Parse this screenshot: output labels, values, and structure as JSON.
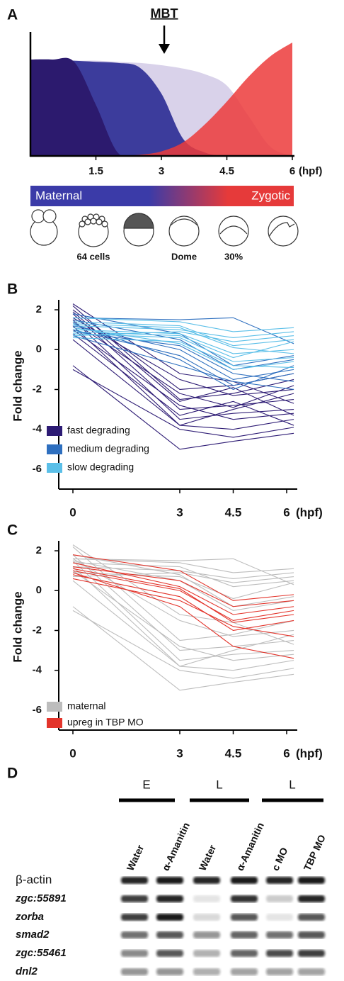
{
  "chart_data": [
    {
      "type": "area",
      "panel": "A",
      "title": "MBT",
      "x": [
        0,
        0.5,
        1,
        1.5,
        2,
        2.5,
        3,
        3.5,
        4,
        4.5,
        5,
        5.5,
        6
      ],
      "series": [
        {
          "color": "#d9d2ea",
          "values": [
            85,
            85,
            84,
            84,
            83,
            82,
            80,
            77,
            72,
            62,
            35,
            8,
            0
          ]
        },
        {
          "color": "#3c3c9c",
          "values": [
            85,
            85,
            84,
            83,
            82,
            78,
            55,
            15,
            3,
            0,
            0,
            0,
            0
          ]
        },
        {
          "color": "#2c1a6e",
          "values": [
            85,
            85,
            83,
            45,
            3,
            0,
            0,
            0,
            0,
            0,
            0,
            0,
            0
          ]
        },
        {
          "color": "#ec3b3b",
          "values": [
            0,
            0,
            0,
            0,
            0,
            1,
            4,
            12,
            28,
            48,
            70,
            88,
            100
          ]
        }
      ],
      "xlim": [
        0,
        6
      ],
      "ylim": [
        0,
        100
      ],
      "xticks": [
        1.5,
        3,
        4.5,
        6
      ],
      "xlabel": "(hpf)",
      "bar_labels": [
        "Maternal",
        "Zygotic"
      ],
      "stage_labels": [
        "64 cells",
        "Dome",
        "30%"
      ]
    },
    {
      "type": "line",
      "panel": "B",
      "xlabel": "(hpf)",
      "ylabel": "Fold change",
      "x": [
        0,
        3,
        4.5,
        6.2
      ],
      "xlim": [
        0,
        6
      ],
      "ylim": [
        -7,
        2.5
      ],
      "xticks": [
        0,
        3,
        4.5,
        6
      ],
      "yticks": [
        2,
        0,
        -2,
        -4,
        -6
      ],
      "groups": [
        {
          "name": "fast degrading",
          "color": "#2d1b74",
          "lines": [
            [
              2.2,
              -2.5,
              -2.2,
              -1.5
            ],
            [
              1.8,
              -3.0,
              -2.8,
              -2.5
            ],
            [
              1.5,
              -3.5,
              -3.2,
              -3.0
            ],
            [
              2.0,
              -2.0,
              -1.8,
              -1.2
            ],
            [
              1.2,
              -3.8,
              -4.0,
              -3.5
            ],
            [
              0.8,
              -3.3,
              -2.6,
              -3.8
            ],
            [
              -0.8,
              -5.0,
              -4.6,
              -4.2
            ],
            [
              -1.0,
              -4.0,
              -4.4,
              -3.9
            ],
            [
              1.6,
              -1.5,
              -2.3,
              -2.0
            ],
            [
              1.0,
              -2.8,
              -3.5,
              -3.2
            ],
            [
              2.3,
              -1.2,
              -1.6,
              -2.7
            ],
            [
              0.5,
              -3.8,
              -3.0,
              -2.2
            ],
            [
              1.4,
              -2.2,
              -2.9,
              -1.8
            ],
            [
              1.9,
              -2.6,
              -1.9,
              -3.3
            ]
          ]
        },
        {
          "name": "medium degrading",
          "color": "#2e6fbf",
          "lines": [
            [
              1.5,
              0.5,
              -1.0,
              -0.5
            ],
            [
              1.2,
              0.0,
              -1.5,
              -1.0
            ],
            [
              1.0,
              -0.3,
              -1.8,
              -1.2
            ],
            [
              1.8,
              0.8,
              -0.8,
              -0.3
            ],
            [
              0.9,
              0.2,
              -1.2,
              -1.6
            ],
            [
              1.3,
              -0.5,
              -2.0,
              -0.8
            ],
            [
              1.6,
              1.5,
              1.6,
              0.3
            ],
            [
              0.7,
              -0.8,
              -1.6,
              -2.0
            ]
          ]
        },
        {
          "name": "slow degrading",
          "color": "#5bbfe8",
          "lines": [
            [
              1.4,
              1.2,
              0.2,
              0.5
            ],
            [
              1.0,
              0.8,
              -0.2,
              0.0
            ],
            [
              0.8,
              0.6,
              -0.6,
              -0.4
            ],
            [
              1.2,
              1.0,
              0.6,
              0.9
            ],
            [
              0.6,
              0.4,
              -0.8,
              -0.9
            ],
            [
              1.6,
              1.4,
              0.9,
              1.1
            ],
            [
              0.9,
              0.7,
              -0.4,
              0.4
            ],
            [
              1.1,
              0.3,
              -1.0,
              -0.6
            ],
            [
              1.3,
              1.1,
              0.1,
              -0.2
            ],
            [
              0.7,
              0.9,
              0.4,
              0.7
            ]
          ]
        }
      ]
    },
    {
      "type": "line",
      "panel": "C",
      "xlabel": "(hpf)",
      "ylabel": "Fold change",
      "x": [
        0,
        3,
        4.5,
        6.2
      ],
      "xlim": [
        0,
        6
      ],
      "ylim": [
        -7,
        2.5
      ],
      "xticks": [
        0,
        3,
        4.5,
        6
      ],
      "yticks": [
        2,
        0,
        -2,
        -4,
        -6
      ],
      "groups": [
        {
          "name": "maternal",
          "color": "#bdbdbd",
          "lines": [
            [
              2.2,
              -2.5,
              -2.2,
              -1.5
            ],
            [
              1.8,
              -3.0,
              -2.8,
              -2.5
            ],
            [
              1.5,
              -3.5,
              -3.2,
              -3.0
            ],
            [
              1.2,
              -3.8,
              -4.0,
              -3.5
            ],
            [
              -0.8,
              -5.0,
              -4.6,
              -4.2
            ],
            [
              -1.0,
              -4.0,
              -4.4,
              -3.9
            ],
            [
              1.6,
              -1.5,
              -2.3,
              -2.0
            ],
            [
              1.0,
              -2.8,
              -3.5,
              -3.2
            ],
            [
              2.3,
              -1.2,
              -1.6,
              -2.7
            ],
            [
              0.5,
              -3.8,
              -3.0,
              -2.2
            ],
            [
              1.5,
              0.5,
              -1.0,
              -0.5
            ],
            [
              1.8,
              0.8,
              -0.8,
              -0.3
            ],
            [
              1.6,
              1.5,
              1.6,
              0.3
            ],
            [
              1.4,
              1.2,
              0.2,
              0.5
            ],
            [
              1.2,
              1.0,
              0.6,
              0.9
            ],
            [
              1.6,
              1.4,
              0.9,
              1.1
            ],
            [
              0.9,
              0.7,
              -0.4,
              0.4
            ],
            [
              0.7,
              0.9,
              0.4,
              0.7
            ]
          ]
        },
        {
          "name": "upreg in TBP MO",
          "color": "#e3342b",
          "lines": [
            [
              1.0,
              0.0,
              -1.5,
              -1.0
            ],
            [
              0.8,
              -0.3,
              -2.0,
              -1.5
            ],
            [
              1.2,
              0.5,
              -0.8,
              -0.5
            ],
            [
              0.6,
              -0.5,
              -1.8,
              -2.3
            ],
            [
              1.4,
              0.2,
              -1.2,
              -0.8
            ],
            [
              0.9,
              -0.8,
              -2.8,
              -3.4
            ],
            [
              1.1,
              0.1,
              -1.6,
              -1.2
            ],
            [
              1.8,
              1.0,
              -0.5,
              -0.2
            ]
          ]
        }
      ]
    }
  ],
  "gel": {
    "panel": "D",
    "groups": [
      "E",
      "L",
      "L"
    ],
    "lanes": [
      "Water",
      "α-Amanitin",
      "Water",
      "α-Amanitin",
      "c MO",
      "TBP MO"
    ],
    "genes": [
      "β-actin",
      "zgc:55891",
      "zorba",
      "smad2",
      "zgc:55461",
      "dnl2"
    ],
    "intensity": [
      [
        0.9,
        0.95,
        0.9,
        0.95,
        0.9,
        0.95
      ],
      [
        0.8,
        0.9,
        0.1,
        0.85,
        0.2,
        0.9
      ],
      [
        0.8,
        0.95,
        0.15,
        0.7,
        0.1,
        0.7
      ],
      [
        0.6,
        0.7,
        0.45,
        0.65,
        0.6,
        0.7
      ],
      [
        0.5,
        0.7,
        0.3,
        0.65,
        0.75,
        0.8
      ],
      [
        0.45,
        0.45,
        0.35,
        0.4,
        0.4,
        0.4
      ]
    ]
  }
}
